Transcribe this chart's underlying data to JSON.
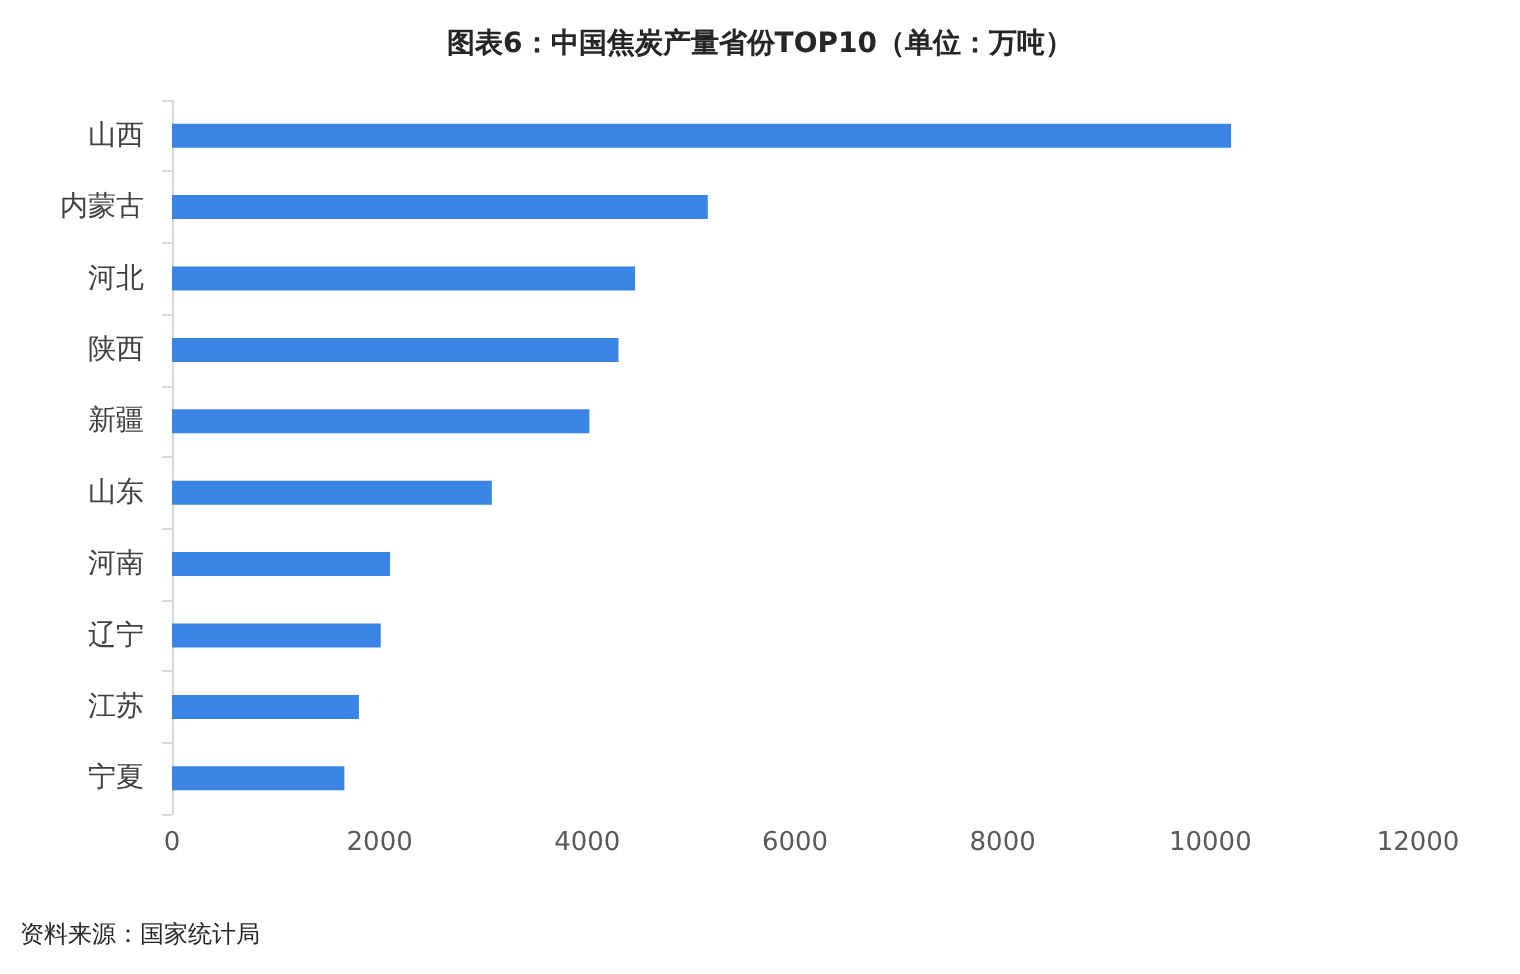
{
  "chart_data": {
    "type": "bar",
    "orientation": "horizontal",
    "title": "图表6：中国焦炭产量省份TOP10（单位：万吨）",
    "categories": [
      "山西",
      "内蒙古",
      "河北",
      "陕西",
      "新疆",
      "山东",
      "河南",
      "辽宁",
      "江苏",
      "宁夏"
    ],
    "values": [
      10200,
      5160,
      4460,
      4300,
      4020,
      3080,
      2100,
      2010,
      1800,
      1660
    ],
    "color": "#3a84e6",
    "xlim": [
      0,
      12000
    ],
    "xticks": [
      0,
      2000,
      4000,
      6000,
      8000,
      10000,
      12000
    ],
    "grid": false,
    "annotations": [
      "资料来源：国家统计局"
    ]
  }
}
